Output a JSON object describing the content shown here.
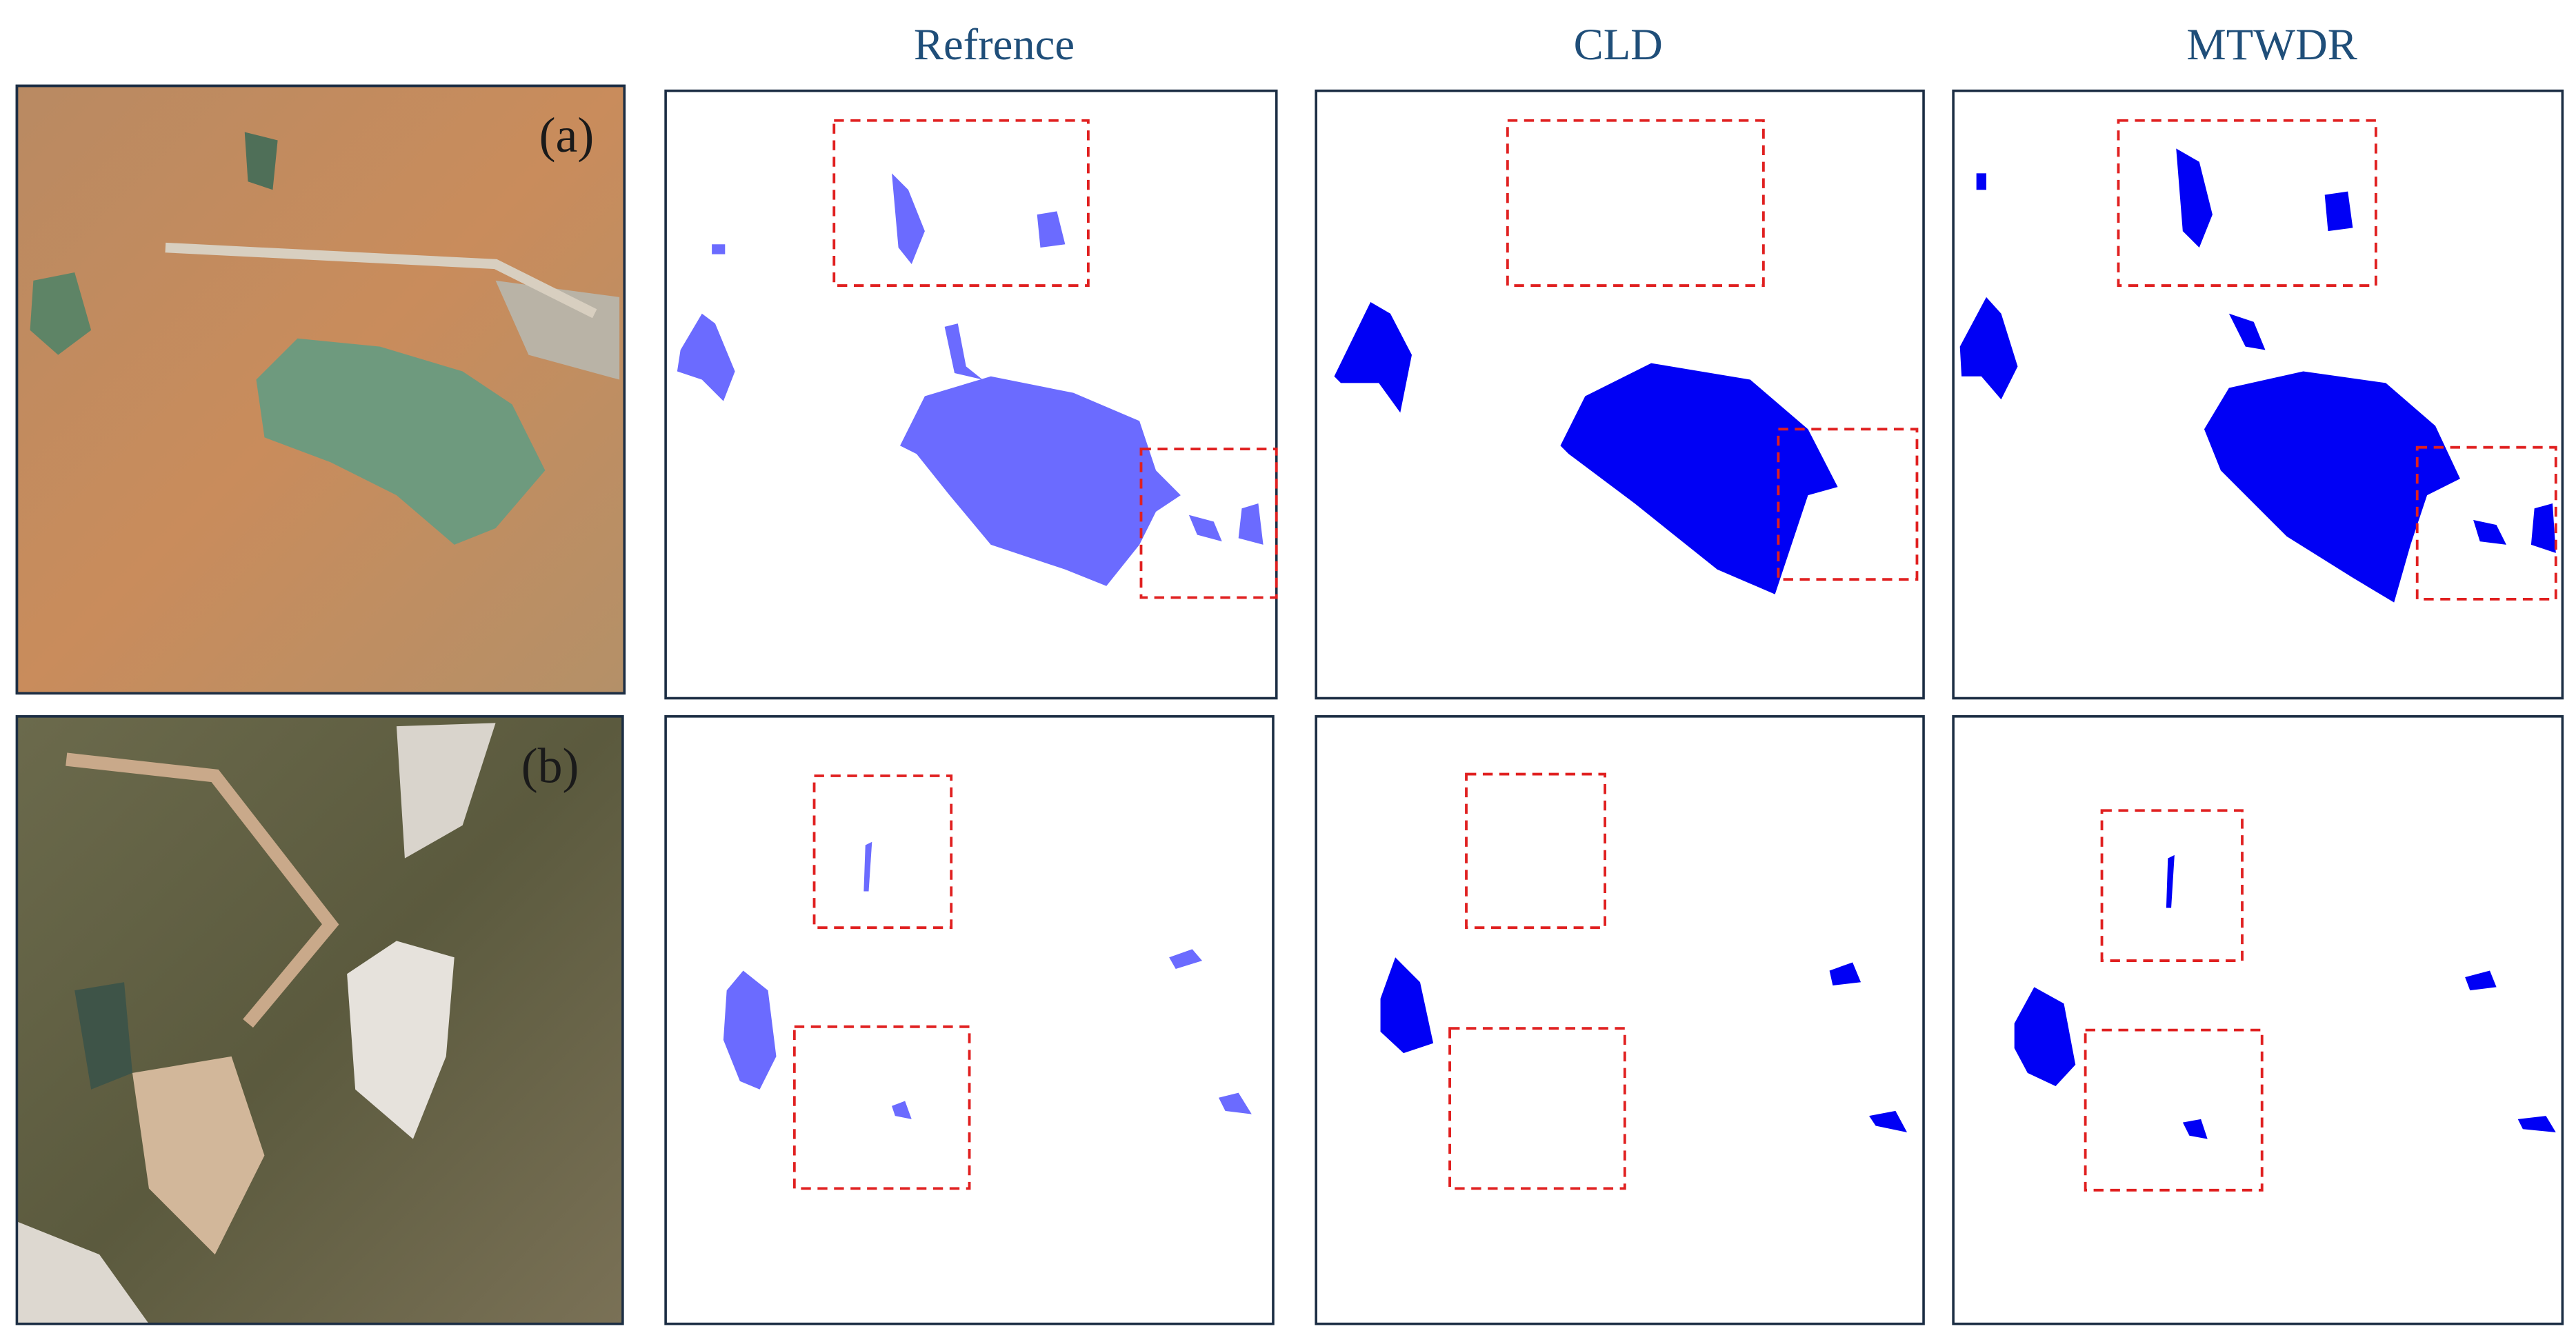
{
  "columns": [
    "Refrence",
    "CLD",
    "MTWDR"
  ],
  "rows": [
    {
      "label": "(a)"
    },
    {
      "label": "(b)"
    }
  ]
}
